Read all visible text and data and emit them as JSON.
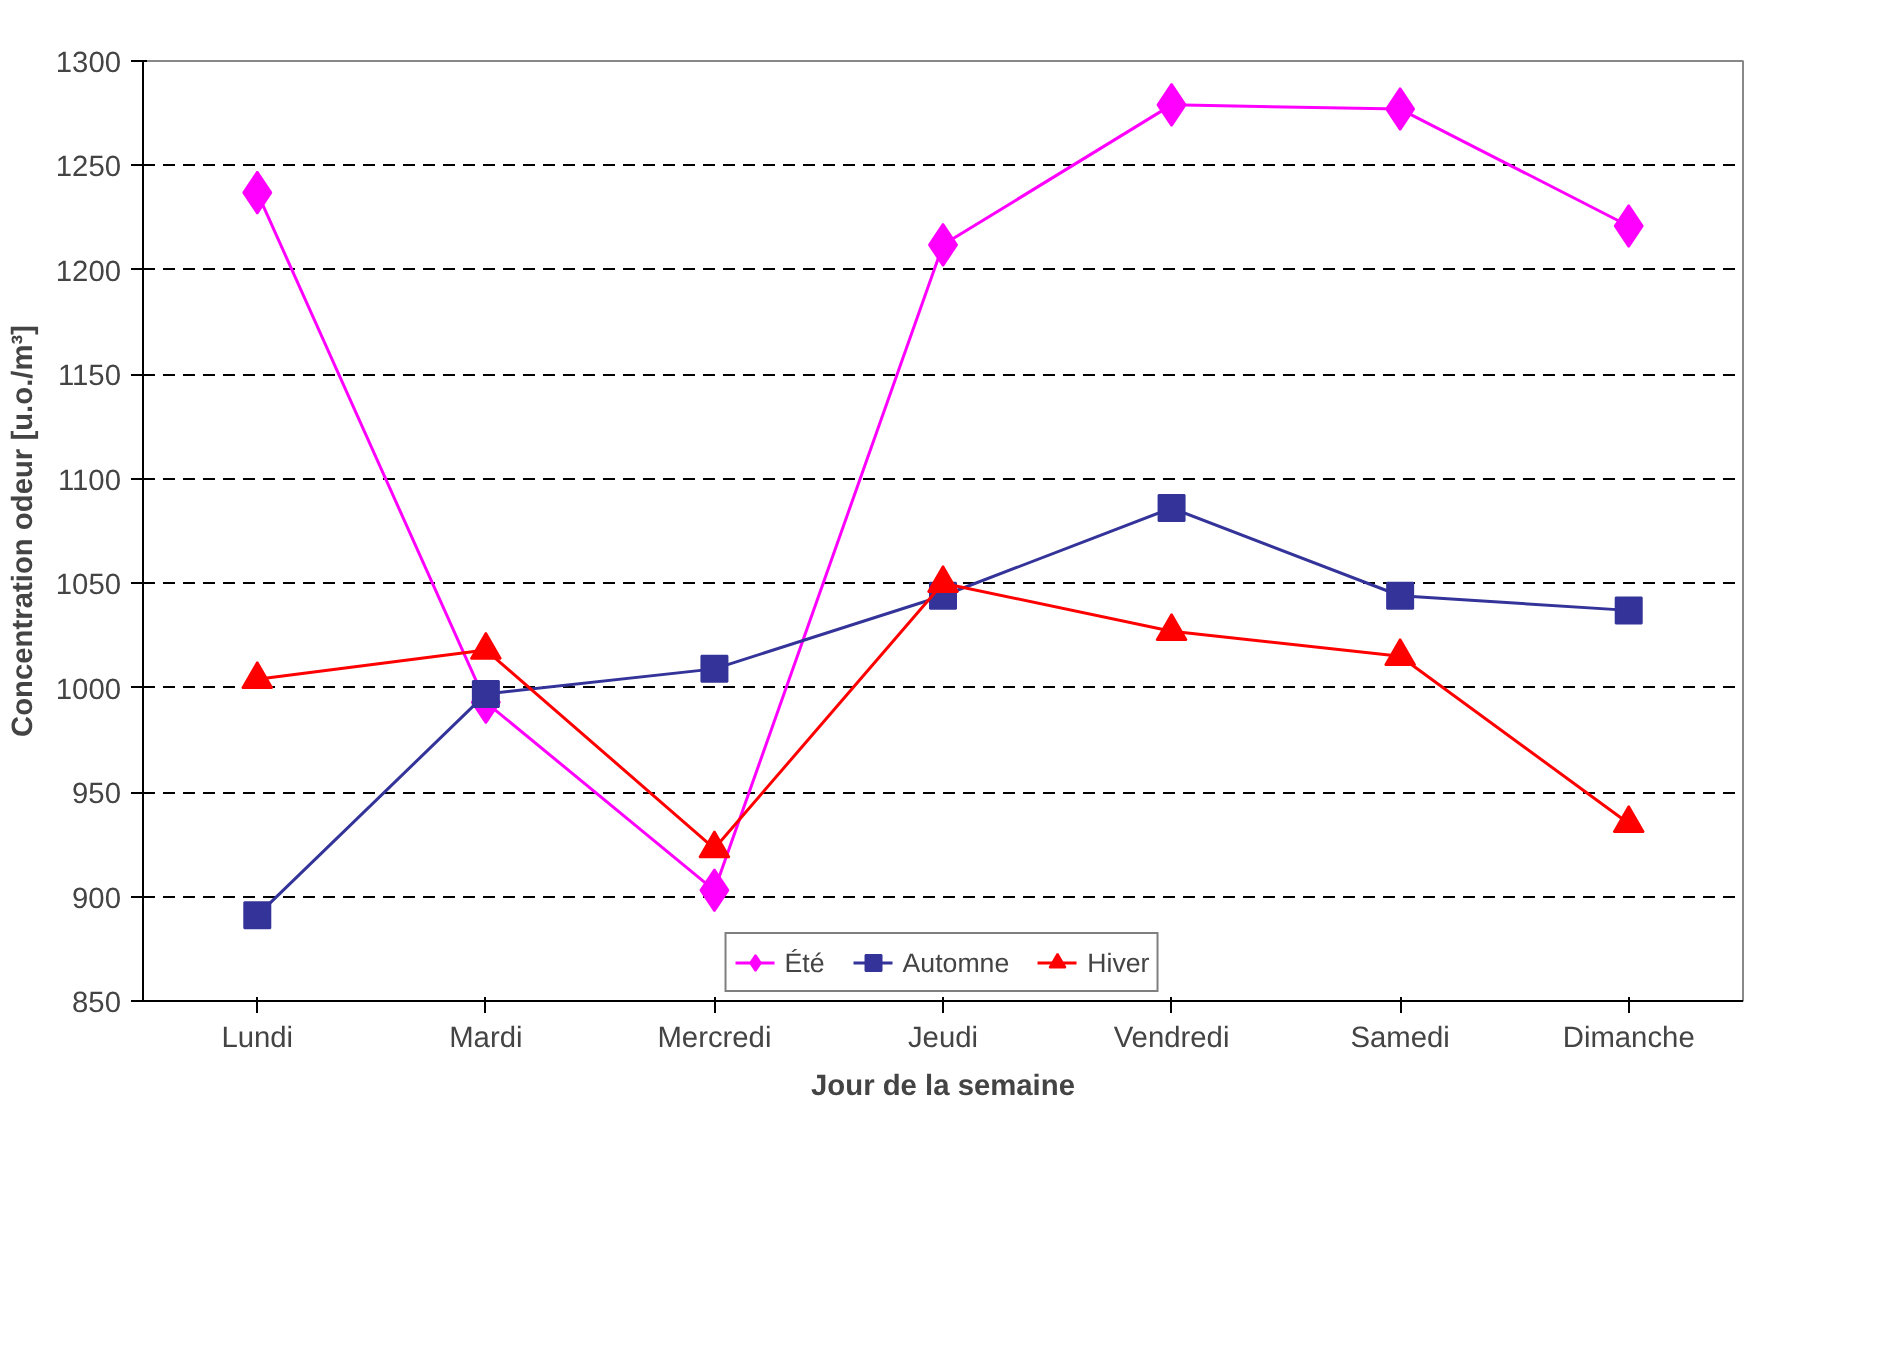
{
  "chart_data": {
    "type": "line",
    "xlabel": "Jour de la semaine",
    "ylabel": "Concentration odeur [u.o./m³]",
    "categories": [
      "Lundi",
      "Mardi",
      "Mercredi",
      "Jeudi",
      "Vendredi",
      "Samedi",
      "Dimanche"
    ],
    "series": [
      {
        "name": "Été",
        "color": "#ff00ff",
        "marker": "diamond",
        "values": [
          1237,
          993,
          903,
          1212,
          1279,
          1277,
          1221
        ]
      },
      {
        "name": "Automne",
        "color": "#333399",
        "marker": "square",
        "values": [
          891,
          997,
          1009,
          1044,
          1086,
          1044,
          1037
        ]
      },
      {
        "name": "Hiver",
        "color": "#ff0000",
        "marker": "triangle",
        "values": [
          1004,
          1018,
          923,
          1050,
          1027,
          1015,
          935
        ]
      }
    ],
    "ylim": [
      850,
      1300
    ],
    "yticks": [
      850,
      900,
      950,
      1000,
      1050,
      1100,
      1150,
      1200,
      1250,
      1300
    ],
    "grid": "y",
    "legend": "bottom",
    "line_style": "solid"
  }
}
